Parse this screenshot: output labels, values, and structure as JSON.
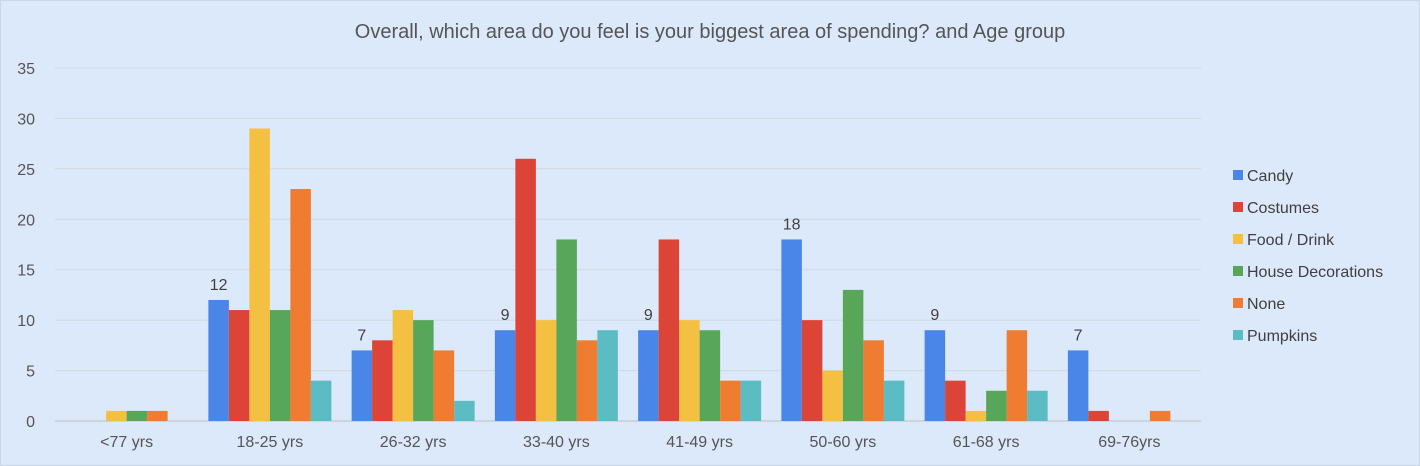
{
  "chart_data": {
    "type": "bar",
    "title": "Overall, which area do you feel is your biggest area of spending? and Age group",
    "xlabel": "",
    "ylabel": "",
    "ylim": [
      0,
      35
    ],
    "yticks": [
      0,
      5,
      10,
      15,
      20,
      25,
      30,
      35
    ],
    "grid": true,
    "legend_position": "right",
    "categories": [
      "<77 yrs",
      "18-25 yrs",
      "26-32 yrs",
      "33-40 yrs",
      "41-49 yrs",
      "50-60 yrs",
      "61-68 yrs",
      "69-76yrs"
    ],
    "series": [
      {
        "name": "Candy",
        "color": "#4a86e8",
        "values": [
          0,
          12,
          7,
          9,
          9,
          18,
          9,
          7
        ],
        "show_labels": true
      },
      {
        "name": "Costumes",
        "color": "#db4437",
        "values": [
          0,
          11,
          8,
          26,
          18,
          10,
          4,
          1
        ],
        "show_labels": false
      },
      {
        "name": "Food / Drink",
        "color": "#f4c042",
        "values": [
          1,
          29,
          11,
          10,
          10,
          5,
          1,
          0
        ],
        "show_labels": false
      },
      {
        "name": "House Decorations",
        "color": "#57a65a",
        "values": [
          1,
          11,
          10,
          18,
          9,
          13,
          3,
          0
        ],
        "show_labels": false
      },
      {
        "name": "None",
        "color": "#ef7c30",
        "values": [
          1,
          23,
          7,
          8,
          4,
          8,
          9,
          1
        ],
        "show_labels": false
      },
      {
        "name": "Pumpkins",
        "color": "#5bbcc4",
        "values": [
          0,
          4,
          2,
          9,
          4,
          4,
          3,
          0
        ],
        "show_labels": false
      }
    ]
  }
}
